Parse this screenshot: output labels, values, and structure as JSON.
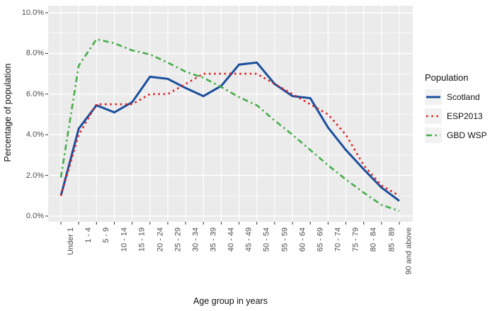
{
  "chart_data": {
    "type": "line",
    "title": "",
    "xlabel": "Age group in years",
    "ylabel": "Percentage of population",
    "legend_title": "Population",
    "legend_position": "right",
    "grid": true,
    "ylim": [
      0,
      10
    ],
    "y_ticks": [
      "0.0%",
      "2.0%",
      "4.0%",
      "6.0%",
      "8.0%",
      "10.0%"
    ],
    "y_tick_values": [
      0,
      2,
      4,
      6,
      8,
      10
    ],
    "categories": [
      "Under 1",
      "1 - 4",
      "5 - 9",
      "10 - 14",
      "15 - 19",
      "20 - 24",
      "25 - 29",
      "30 - 34",
      "35 - 39",
      "40 - 44",
      "45 - 49",
      "50 - 54",
      "55 - 59",
      "60 - 64",
      "65 - 69",
      "70 - 74",
      "75 - 79",
      "80 - 84",
      "85 - 89",
      "90 and above"
    ],
    "series": [
      {
        "name": "Scotland",
        "color": "#1a4e9c",
        "style": "solid",
        "values": [
          1.0,
          4.3,
          5.45,
          5.1,
          5.6,
          6.85,
          6.75,
          6.3,
          5.9,
          6.4,
          7.45,
          7.55,
          6.5,
          5.9,
          5.8,
          4.35,
          3.25,
          2.3,
          1.4,
          0.75
        ]
      },
      {
        "name": "ESP2013",
        "color": "#e02020",
        "style": "dotted",
        "values": [
          1.0,
          4.0,
          5.5,
          5.5,
          5.5,
          6.0,
          6.0,
          6.5,
          7.0,
          7.0,
          7.0,
          7.0,
          6.5,
          6.0,
          5.5,
          5.0,
          4.0,
          2.5,
          1.5,
          1.0
        ]
      },
      {
        "name": "GBD WSP",
        "color": "#45ad49",
        "style": "dashdot",
        "values": [
          1.9,
          7.4,
          8.7,
          8.5,
          8.15,
          7.95,
          7.55,
          7.1,
          6.8,
          6.35,
          5.85,
          5.45,
          4.7,
          4.0,
          3.25,
          2.5,
          1.8,
          1.15,
          0.55,
          0.25
        ]
      }
    ],
    "colors": {
      "panel_background": "#ebebeb",
      "gridline": "#ffffff",
      "tick_mark": "#333333",
      "tick_text": "#4d4d4d"
    }
  }
}
